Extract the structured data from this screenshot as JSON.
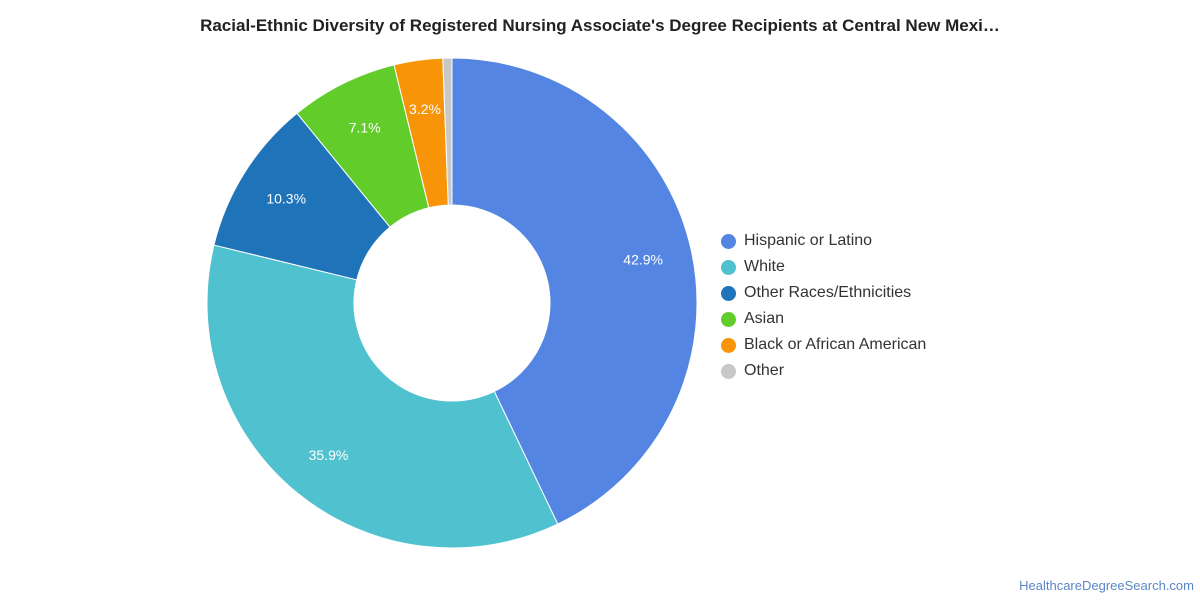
{
  "title": "Racial-Ethnic Diversity of Registered Nursing Associate's Degree Recipients at Central New Mexi…",
  "watermark": "HealthcareDegreeSearch.com",
  "chart_data": {
    "type": "pie",
    "variant": "donut",
    "title": "Racial-Ethnic Diversity of Registered Nursing Associate's Degree Recipients at Central New Mexi…",
    "legend_position": "right",
    "slices": [
      {
        "name": "Hispanic or Latino",
        "value": 42.9,
        "label": "42.9%",
        "color": "#5485e3"
      },
      {
        "name": "White",
        "value": 35.9,
        "label": "35.9%",
        "color": "#50c1cf"
      },
      {
        "name": "Other Races/Ethnicities",
        "value": 10.3,
        "label": "10.3%",
        "color": "#1f73b9"
      },
      {
        "name": "Asian",
        "value": 7.1,
        "label": "7.1%",
        "color": "#62cc2b"
      },
      {
        "name": "Black or African American",
        "value": 3.2,
        "label": "3.2%",
        "color": "#f79408"
      },
      {
        "name": "Other",
        "value": 0.6,
        "label": "",
        "color": "#c8c8c8"
      }
    ]
  }
}
